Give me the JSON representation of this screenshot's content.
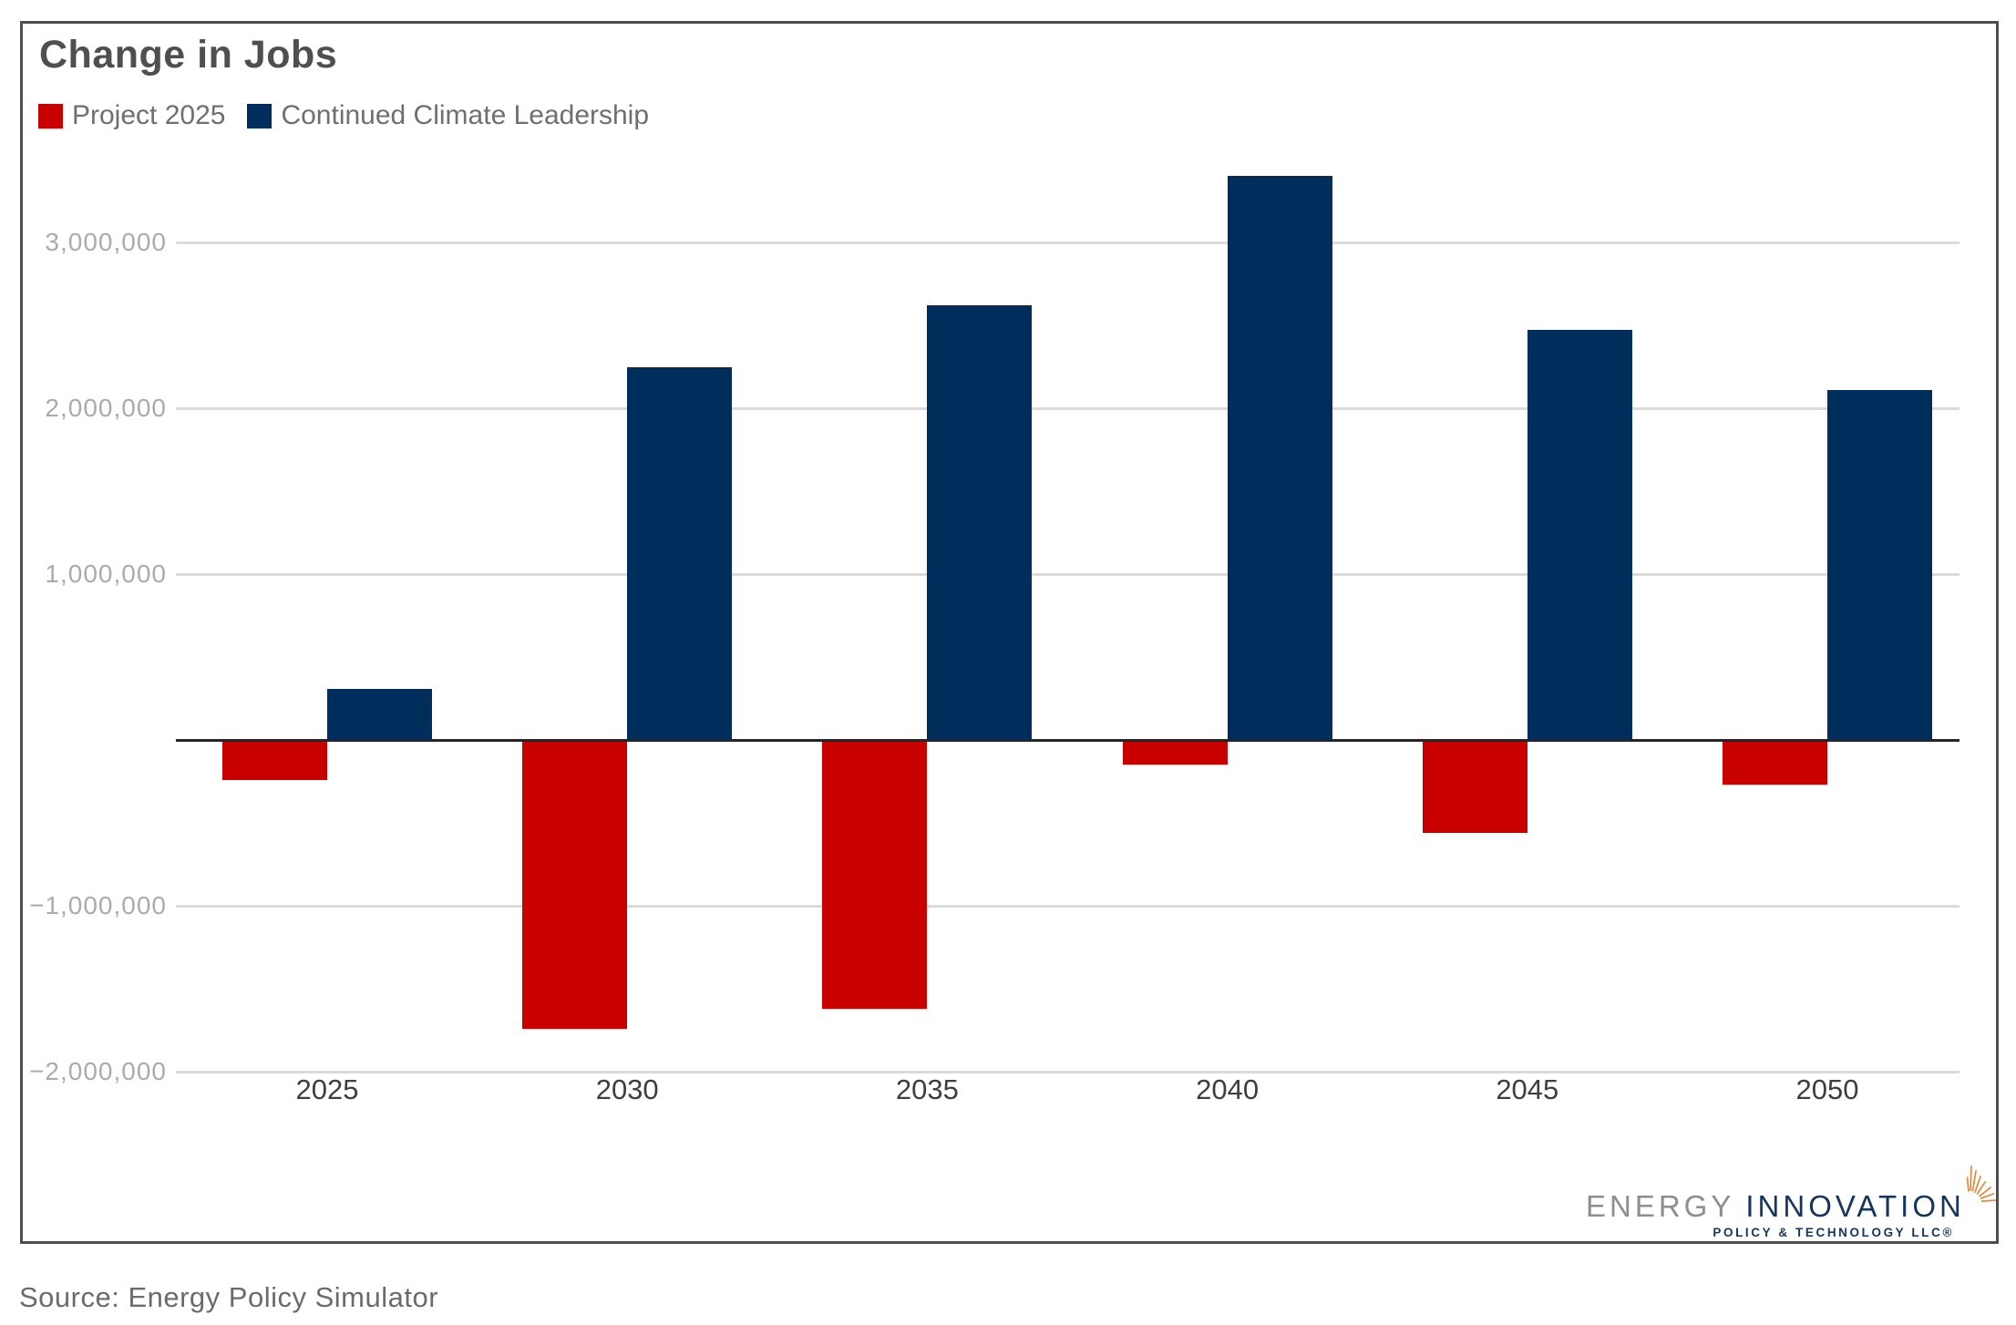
{
  "title": "Change in Jobs",
  "legend": [
    {
      "label": "Project 2025",
      "color": "#C90000"
    },
    {
      "label": "Continued Climate Leadership",
      "color": "#002E5C"
    }
  ],
  "chart_data": {
    "type": "bar",
    "title": "Change in Jobs",
    "categories": [
      "2025",
      "2030",
      "2035",
      "2040",
      "2045",
      "2050"
    ],
    "series": [
      {
        "name": "Project 2025",
        "color": "#C90000",
        "values": [
          -240000,
          -1740000,
          -1620000,
          -150000,
          -560000,
          -270000
        ]
      },
      {
        "name": "Continued Climate Leadership",
        "color": "#002E5C",
        "values": [
          310000,
          2250000,
          2620000,
          3400000,
          2470000,
          2110000
        ]
      }
    ],
    "ylim": [
      -2350000,
      3550000
    ],
    "grid": true,
    "legend_position": "top-left",
    "y_ticks": [
      {
        "value": 3000000,
        "label": "3,000,000"
      },
      {
        "value": 2000000,
        "label": "2,000,000"
      },
      {
        "value": 1000000,
        "label": "1,000,000"
      },
      {
        "value": -1000000,
        "label": "−1,000,000"
      },
      {
        "value": -2000000,
        "label": "−2,000,000"
      }
    ]
  },
  "source_note": "Source: Energy Policy Simulator",
  "logo": {
    "word1": "ENERGY",
    "word2": "INNOVATION",
    "subtext": "POLICY & TECHNOLOGY LLC®",
    "sunburst_color": "#E38A41"
  }
}
